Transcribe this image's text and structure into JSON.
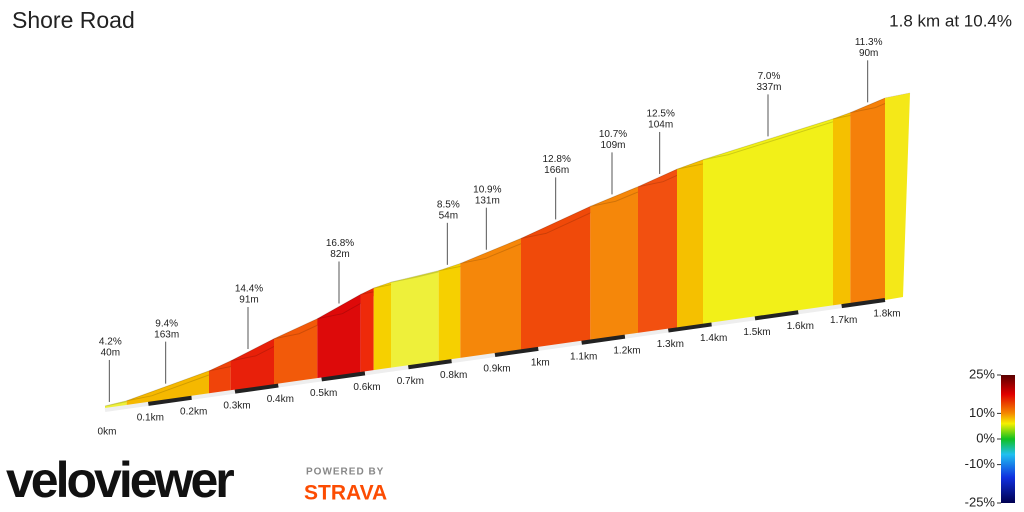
{
  "chart_data": {
    "type": "profile",
    "title": "Shore Road",
    "subtitle": "1.8 km at 10.4%",
    "bins": [
      0,
      0.05,
      0.24,
      0.29,
      0.39,
      0.49,
      0.59,
      0.62,
      0.66,
      0.77,
      0.82,
      0.96,
      1.12,
      1.23,
      1.32,
      1.38,
      1.68,
      1.72,
      1.8
    ],
    "grades": [
      4,
      9,
      13,
      15,
      13,
      17,
      14,
      8,
      4,
      8,
      11,
      13,
      11,
      12.5,
      9,
      7,
      9,
      11.3
    ],
    "colors": [
      "#eef03a",
      "#f5b800",
      "#f0440a",
      "#e8200a",
      "#f25a0a",
      "#dd0a0a",
      "#ee2a0a",
      "#f6d000",
      "#eef03a",
      "#f6d000",
      "#f5870a",
      "#f04a0a",
      "#f5870a",
      "#f25010",
      "#f5c000",
      "#f2f018",
      "#f5c000",
      "#f5800a"
    ],
    "annotations": {
      "x": [
        0.01,
        0.14,
        0.33,
        0.54,
        0.79,
        0.88,
        1.04,
        1.17,
        1.28,
        1.53,
        1.76
      ],
      "grades": [
        4.2,
        9.4,
        14.4,
        16.8,
        8.5,
        10.9,
        12.8,
        10.7,
        12.5,
        7.0,
        11.3
      ],
      "grade_labels": [
        "4.2%",
        "9.4%",
        "14.4%",
        "16.8%",
        "8.5%",
        "10.9%",
        "12.8%",
        "10.7%",
        "12.5%",
        "7.0%",
        "11.3%"
      ],
      "lengths": [
        40,
        163,
        91,
        82,
        54,
        131,
        166,
        109,
        104,
        337,
        90
      ],
      "length_labels": [
        "40m",
        "163m",
        "91m",
        "82m",
        "54m",
        "131m",
        "166m",
        "109m",
        "104m",
        "337m",
        "90m"
      ]
    },
    "xlim": [
      0,
      1.8
    ],
    "xticks": [
      {
        "value": 0,
        "label": "0km"
      },
      {
        "value": 0.1,
        "label": "0.1km"
      },
      {
        "value": 0.2,
        "label": "0.2km"
      },
      {
        "value": 0.3,
        "label": "0.3km"
      },
      {
        "value": 0.4,
        "label": "0.4km"
      },
      {
        "value": 0.5,
        "label": "0.5km"
      },
      {
        "value": 0.6,
        "label": "0.6km"
      },
      {
        "value": 0.7,
        "label": "0.7km"
      },
      {
        "value": 0.8,
        "label": "0.8km"
      },
      {
        "value": 0.9,
        "label": "0.9km"
      },
      {
        "value": 1,
        "label": "1km"
      },
      {
        "value": 1.1,
        "label": "1.1km"
      },
      {
        "value": 1.2,
        "label": "1.2km"
      },
      {
        "value": 1.3,
        "label": "1.3km"
      },
      {
        "value": 1.4,
        "label": "1.4km"
      },
      {
        "value": 1.5,
        "label": "1.5km"
      },
      {
        "value": 1.6,
        "label": "1.6km"
      },
      {
        "value": 1.7,
        "label": "1.7km"
      },
      {
        "value": 1.8,
        "label": "1.8km"
      }
    ],
    "colorbar": {
      "ylim": [
        -25,
        25
      ],
      "yticks": [
        {
          "value": 25,
          "label": "25%"
        },
        {
          "value": 10,
          "label": "10%"
        },
        {
          "value": 0,
          "label": "0%"
        },
        {
          "value": -10,
          "label": "-10%"
        },
        {
          "value": -25,
          "label": "-25%"
        }
      ]
    },
    "logo": {
      "brand": "veloviewer",
      "powered": "POWERED BY",
      "strava": "STRAVA"
    }
  }
}
